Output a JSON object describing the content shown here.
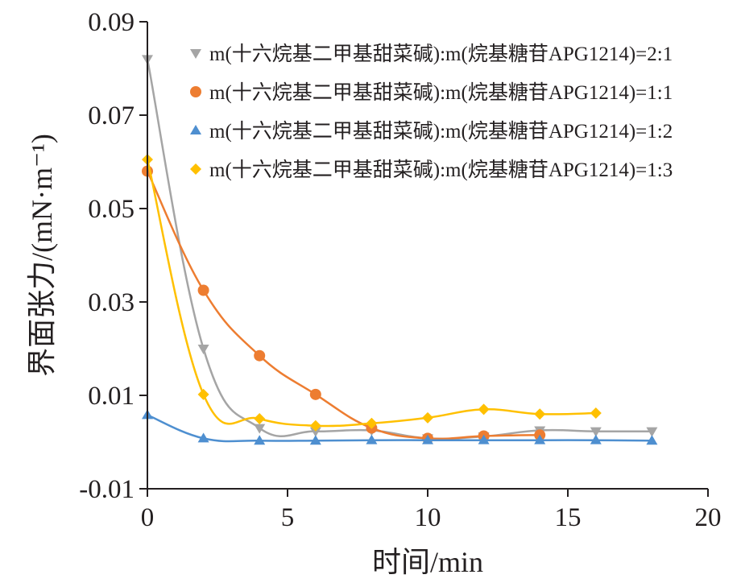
{
  "chart_data": {
    "type": "line",
    "xlabel": "时间/min",
    "ylabel": "界面张力/(mN·m⁻¹)",
    "xlim": [
      0,
      20
    ],
    "ylim": [
      -0.01,
      0.09
    ],
    "x_ticks": [
      0,
      5,
      10,
      15,
      20
    ],
    "y_ticks": [
      -0.01,
      0.01,
      0.03,
      0.05,
      0.07,
      0.09
    ],
    "x_tick_labels": [
      "0",
      "5",
      "10",
      "15",
      "20"
    ],
    "y_tick_labels": [
      "-0.01",
      "0.01",
      "0.03",
      "0.05",
      "0.07",
      "0.09"
    ],
    "grid": false,
    "legend_position": "top-right",
    "series": [
      {
        "name": "m(十六烷基二甲基甜菜碱):m(烷基糖苷APG1214)=2:1",
        "color": "#a5a5a5",
        "marker": "triangle-down",
        "x": [
          0,
          2,
          4,
          6,
          8,
          10,
          12,
          14,
          16,
          18
        ],
        "y": [
          0.082,
          0.02,
          0.003,
          0.0023,
          0.0025,
          0.0008,
          0.0012,
          0.0025,
          0.0023,
          0.0023
        ]
      },
      {
        "name": "m(十六烷基二甲基甜菜碱):m(烷基糖苷APG1214)=1:1",
        "color": "#ed7d31",
        "marker": "circle",
        "x": [
          0,
          2,
          4,
          6,
          8,
          10,
          12,
          14
        ],
        "y": [
          0.058,
          0.0325,
          0.0185,
          0.0102,
          0.003,
          0.0008,
          0.0013,
          0.0015
        ]
      },
      {
        "name": "m(十六烷基二甲基甜菜碱):m(烷基糖苷APG1214)=1:2",
        "color": "#4e8fd0",
        "marker": "triangle-up",
        "x": [
          0,
          2,
          4,
          6,
          8,
          10,
          12,
          14,
          16,
          18
        ],
        "y": [
          0.0058,
          0.0008,
          0.0003,
          0.0003,
          0.0004,
          0.0004,
          0.0004,
          0.0004,
          0.0004,
          0.0003
        ]
      },
      {
        "name": "m(十六烷基二甲基甜菜碱):m(烷基糖苷APG1214)=1:3",
        "color": "#ffc000",
        "marker": "diamond",
        "x": [
          0,
          2,
          4,
          6,
          8,
          10,
          12,
          14,
          16
        ],
        "y": [
          0.0605,
          0.0102,
          0.005,
          0.0035,
          0.004,
          0.0052,
          0.007,
          0.006,
          0.0062
        ]
      }
    ]
  }
}
